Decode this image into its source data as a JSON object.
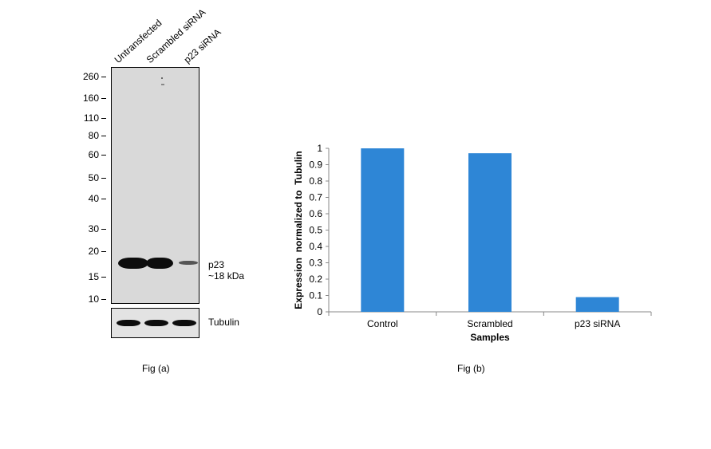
{
  "fig_a": {
    "lanes": [
      "Untransfected",
      "Scrambled siRNA",
      "p23 siRNA"
    ],
    "markers": [
      "260",
      "160",
      "110",
      "80",
      "60",
      "50",
      "40",
      "30",
      "20",
      "15",
      "10"
    ],
    "target_name": "p23",
    "target_size": "~18 kDa",
    "loading_control": "Tubulin",
    "caption": "Fig (a)"
  },
  "fig_b": {
    "caption": "Fig (b)"
  },
  "chart_data": {
    "type": "bar",
    "categories": [
      "Control",
      "Scrambled",
      "p23 siRNA"
    ],
    "values": [
      1.0,
      0.97,
      0.09
    ],
    "title": "",
    "xlabel": "Samples",
    "ylabel": "Expression  normalized to  Tubulin",
    "ylim": [
      0,
      1
    ],
    "yticks": [
      0,
      0.1,
      0.2,
      0.3,
      0.4,
      0.5,
      0.6,
      0.7,
      0.8,
      0.9,
      1
    ],
    "grid": false,
    "legend": "none",
    "bar_color": "#2e86d6"
  }
}
